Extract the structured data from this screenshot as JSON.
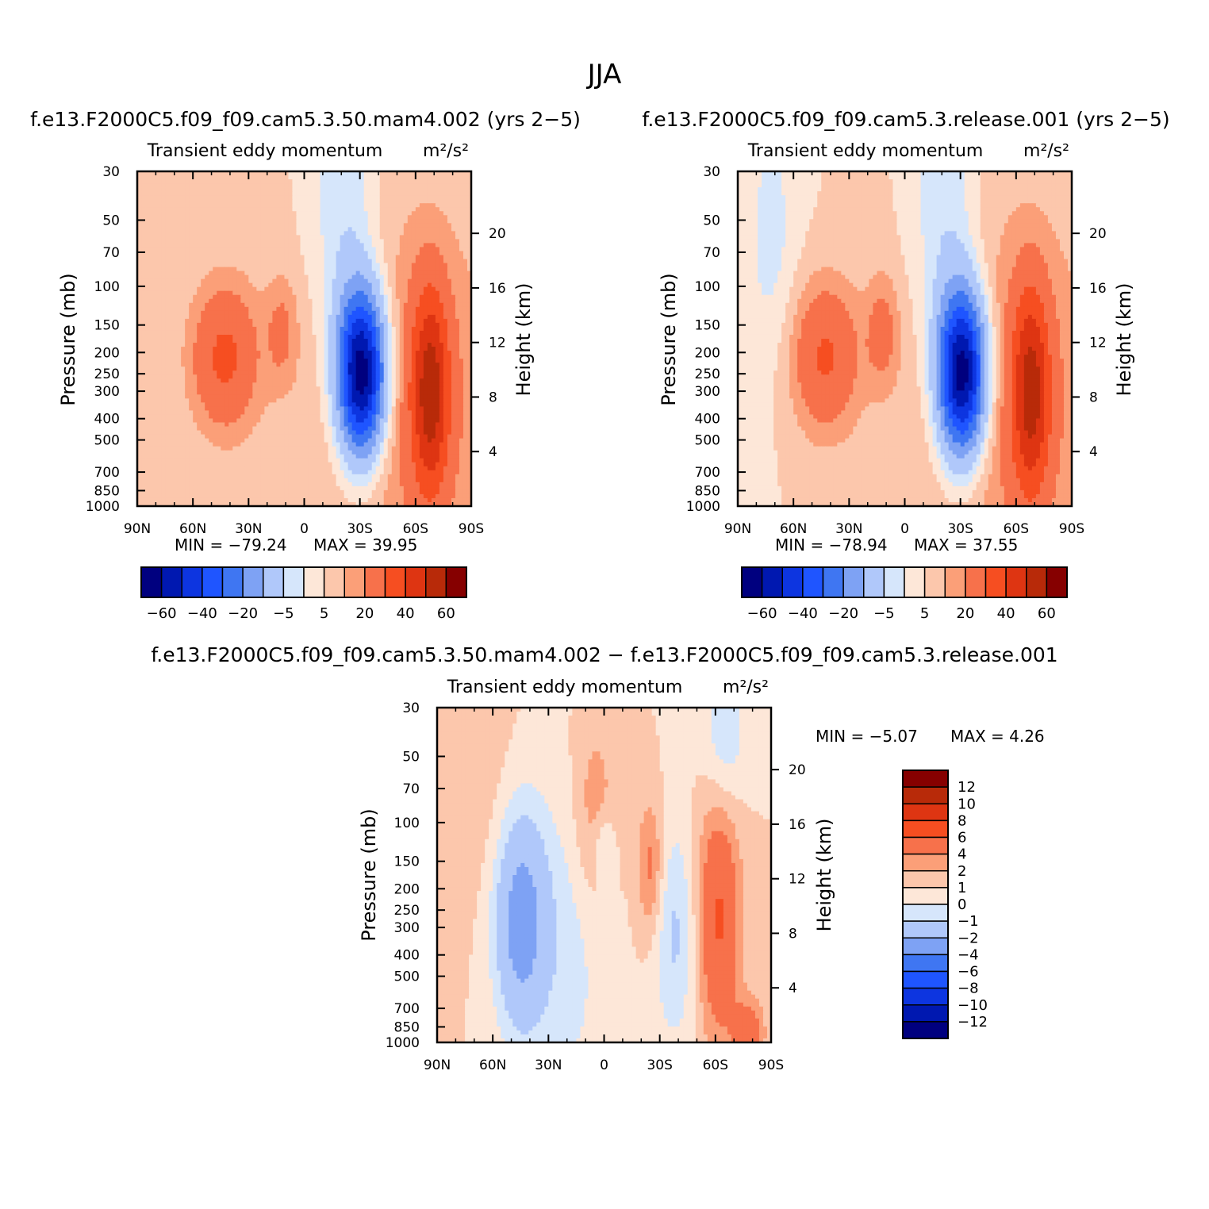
{
  "page": {
    "season": "JJA",
    "diff_title": "f.e13.F2000C5.f09_f09.cam5.3.50.mam4.002 − f.e13.F2000C5.f09_f09.cam5.3.release.001"
  },
  "colors": {
    "fill_15": [
      "#00007f",
      "#0018b0",
      "#0d35e0",
      "#1f55ff",
      "#3f76f2",
      "#7ea2f4",
      "#b0c8fa",
      "#d6e6fb",
      "#fde7d8",
      "#fcc7ac",
      "#fb9f78",
      "#f7714b",
      "#f64e21",
      "#de3512",
      "#b82a09",
      "#860000"
    ],
    "fill_12": [
      "#00007f",
      "#0018b0",
      "#0d35e0",
      "#1f55ff",
      "#3f76f2",
      "#7ea2f4",
      "#b0c8fa",
      "#d6e6fb",
      "#fde7d8",
      "#fcc7ac",
      "#fb9f78",
      "#f7714b",
      "#f64e21",
      "#de3512",
      "#b82a09",
      "#860000"
    ]
  },
  "chart_data": [
    {
      "type": "heatmap",
      "case_title": "f.e13.F2000C5.f09_f09.cam5.3.50.mam4.002 (yrs 2−5)",
      "variable": "Transient eddy momentum",
      "units": "m²/s²",
      "ylabel": "Pressure (mb)",
      "y2label": "Height (km)",
      "x_ticks": [
        "90N",
        "60N",
        "30N",
        "0",
        "30S",
        "60S",
        "90S"
      ],
      "y_ticks": [
        30,
        50,
        70,
        100,
        150,
        200,
        250,
        300,
        400,
        500,
        700,
        850,
        1000
      ],
      "y2_ticks": [
        4,
        8,
        12,
        16,
        20
      ],
      "min_label": "MIN = −79.24",
      "max_label": "MAX =   39.95",
      "levels": [
        -70,
        -60,
        -50,
        -40,
        -30,
        -20,
        -10,
        -5,
        0,
        5,
        10,
        20,
        30,
        40,
        50,
        60,
        70
      ],
      "colorbar_labels": [
        "−60",
        "−40",
        "−20",
        "−5",
        "5",
        "20",
        "40",
        "60"
      ],
      "features": [
        {
          "lat": -57,
          "p": 350,
          "dlat": 38,
          "dlnp": 1.5,
          "amp": 11
        },
        {
          "lat": 43,
          "p": 210,
          "dlat": 13,
          "dlnp": 0.55,
          "amp": 22
        },
        {
          "lat": 12,
          "p": 160,
          "dlat": 6,
          "dlnp": 0.4,
          "amp": 10
        },
        {
          "lat": -31,
          "p": 250,
          "dlat": 9,
          "dlnp": 0.6,
          "amp": -80
        },
        {
          "lat": -68,
          "p": 300,
          "dlat": 7,
          "dlnp": 0.75,
          "amp": 38
        },
        {
          "lat": -24,
          "p": 55,
          "dlat": 11,
          "dlnp": 1.3,
          "amp": -10
        },
        {
          "lat": -10,
          "p": 50,
          "dlat": 10,
          "dlnp": 1.0,
          "amp": -3
        }
      ]
    },
    {
      "type": "heatmap",
      "case_title": "f.e13.F2000C5.f09_f09.cam5.3.release.001 (yrs 2−5)",
      "variable": "Transient eddy momentum",
      "units": "m²/s²",
      "ylabel": "Pressure (mb)",
      "y2label": "Height (km)",
      "x_ticks": [
        "90N",
        "60N",
        "30N",
        "0",
        "30S",
        "60S",
        "90S"
      ],
      "y_ticks": [
        30,
        50,
        70,
        100,
        150,
        200,
        250,
        300,
        400,
        500,
        700,
        850,
        1000
      ],
      "y2_ticks": [
        4,
        8,
        12,
        16,
        20
      ],
      "min_label": "MIN = −78.94",
      "max_label": "MAX =   37.55",
      "levels": [
        -70,
        -60,
        -50,
        -40,
        -30,
        -20,
        -10,
        -5,
        0,
        5,
        10,
        20,
        30,
        40,
        50,
        60,
        70
      ],
      "colorbar_labels": [
        "−60",
        "−40",
        "−20",
        "−5",
        "5",
        "20",
        "40",
        "60"
      ],
      "features": [
        {
          "lat": -57,
          "p": 350,
          "dlat": 38,
          "dlnp": 1.5,
          "amp": 11
        },
        {
          "lat": 43,
          "p": 210,
          "dlat": 13,
          "dlnp": 0.55,
          "amp": 21
        },
        {
          "lat": 12,
          "p": 160,
          "dlat": 6,
          "dlnp": 0.4,
          "amp": 12
        },
        {
          "lat": -31,
          "p": 250,
          "dlat": 9,
          "dlnp": 0.6,
          "amp": -79
        },
        {
          "lat": -68,
          "p": 300,
          "dlat": 7,
          "dlnp": 0.75,
          "amp": 37
        },
        {
          "lat": -24,
          "p": 55,
          "dlat": 11,
          "dlnp": 1.3,
          "amp": -10
        },
        {
          "lat": 72,
          "p": 60,
          "dlat": 10,
          "dlnp": 1.0,
          "amp": -7
        },
        {
          "lat": -10,
          "p": 50,
          "dlat": 10,
          "dlnp": 1.0,
          "amp": -3
        }
      ]
    },
    {
      "type": "heatmap",
      "variable": "Transient eddy momentum",
      "units": "m²/s²",
      "ylabel": "Pressure (mb)",
      "y2label": "Height (km)",
      "x_ticks": [
        "90N",
        "60N",
        "30N",
        "0",
        "30S",
        "60S",
        "90S"
      ],
      "y_ticks": [
        30,
        50,
        70,
        100,
        150,
        200,
        250,
        300,
        400,
        500,
        700,
        850,
        1000
      ],
      "y2_ticks": [
        4,
        8,
        12,
        16,
        20
      ],
      "min_label": "MIN =   −5.07",
      "max_label": "MAX =     4.26",
      "levels": [
        -14,
        -12,
        -10,
        -8,
        -6,
        -4,
        -2,
        -1,
        0,
        1,
        2,
        4,
        6,
        8,
        10,
        12,
        14
      ],
      "colorbar_labels": [
        "−12",
        "−10",
        "−8",
        "−6",
        "−4",
        "−2",
        "−1",
        "0",
        "1",
        "2",
        "4",
        "6",
        "8",
        "10",
        "12"
      ],
      "features": [
        {
          "lat": 45,
          "p": 280,
          "dlat": 10,
          "dlnp": 0.8,
          "amp": -5
        },
        {
          "lat": 20,
          "p": 400,
          "dlat": 15,
          "dlnp": 1.2,
          "amp": -1.4
        },
        {
          "lat": 70,
          "p": 60,
          "dlat": 14,
          "dlnp": 1.0,
          "amp": 0.8
        },
        {
          "lat": 5,
          "p": 90,
          "dlat": 8,
          "dlnp": 0.7,
          "amp": 1.8
        },
        {
          "lat": 0,
          "p": 130,
          "dlat": 4,
          "dlnp": 0.25,
          "amp": -1.8
        },
        {
          "lat": -25,
          "p": 160,
          "dlat": 5,
          "dlnp": 0.5,
          "amp": 2.5
        },
        {
          "lat": -62,
          "p": 270,
          "dlat": 8,
          "dlnp": 0.9,
          "amp": 4.2
        },
        {
          "lat": -38,
          "p": 320,
          "dlat": 8,
          "dlnp": 0.8,
          "amp": -2.2
        },
        {
          "lat": -65,
          "p": 40,
          "dlat": 8,
          "dlnp": 0.6,
          "amp": -2.0
        },
        {
          "lat": -78,
          "p": 900,
          "dlat": 6,
          "dlnp": 0.25,
          "amp": 3
        }
      ]
    }
  ]
}
